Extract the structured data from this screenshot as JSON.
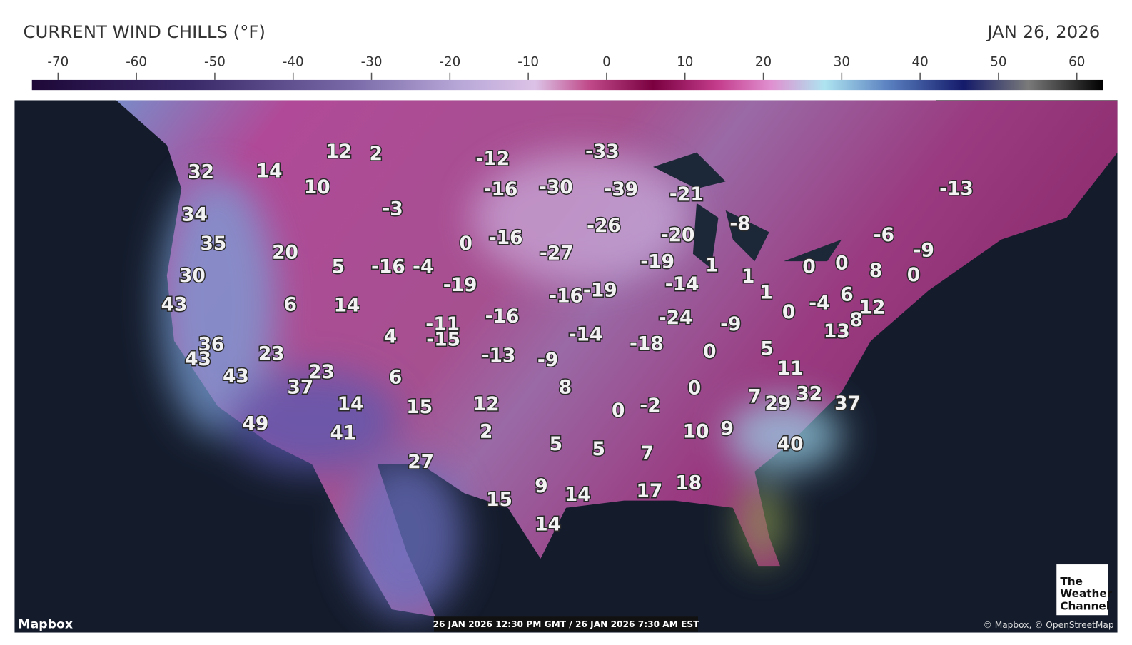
{
  "header": {
    "title": "CURRENT WIND CHILLS (°F)",
    "date": "JAN 26, 2026"
  },
  "legend": {
    "ticks": [
      -70,
      -60,
      -50,
      -40,
      -30,
      -20,
      -10,
      0,
      10,
      20,
      30,
      40,
      50,
      60
    ]
  },
  "map": {
    "labels": [
      12,
      2,
      -12,
      -33,
      32,
      14,
      10,
      -16,
      -30,
      -39,
      -21,
      -13,
      34,
      -3,
      35,
      20,
      0,
      -16,
      -26,
      -20,
      -8,
      -6,
      -9,
      30,
      5,
      -16,
      -4,
      -27,
      -19,
      1,
      1,
      0,
      0,
      8,
      0,
      43,
      6,
      14,
      -19,
      -16,
      -19,
      -14,
      1,
      -11,
      -16,
      -24,
      -9,
      0,
      -4,
      6,
      12,
      8,
      36,
      4,
      -15,
      -14,
      -18,
      13,
      43,
      23,
      -13,
      -9,
      0,
      5,
      43,
      23,
      6,
      11,
      37,
      8,
      0,
      14,
      15,
      12,
      0,
      -2,
      7,
      29,
      32,
      37,
      49,
      41,
      2,
      10,
      9,
      40,
      5,
      5,
      7,
      27,
      9,
      18,
      17,
      15,
      14,
      14
    ]
  },
  "footer": {
    "brand": "Mapbox",
    "timestamp": "26 JAN 2026 12:30 PM GMT / 26 JAN 2026 7:30 AM EST",
    "attribution": "© Mapbox, © OpenStreetMap",
    "logo": [
      "The",
      "Weather",
      "Channel"
    ]
  }
}
